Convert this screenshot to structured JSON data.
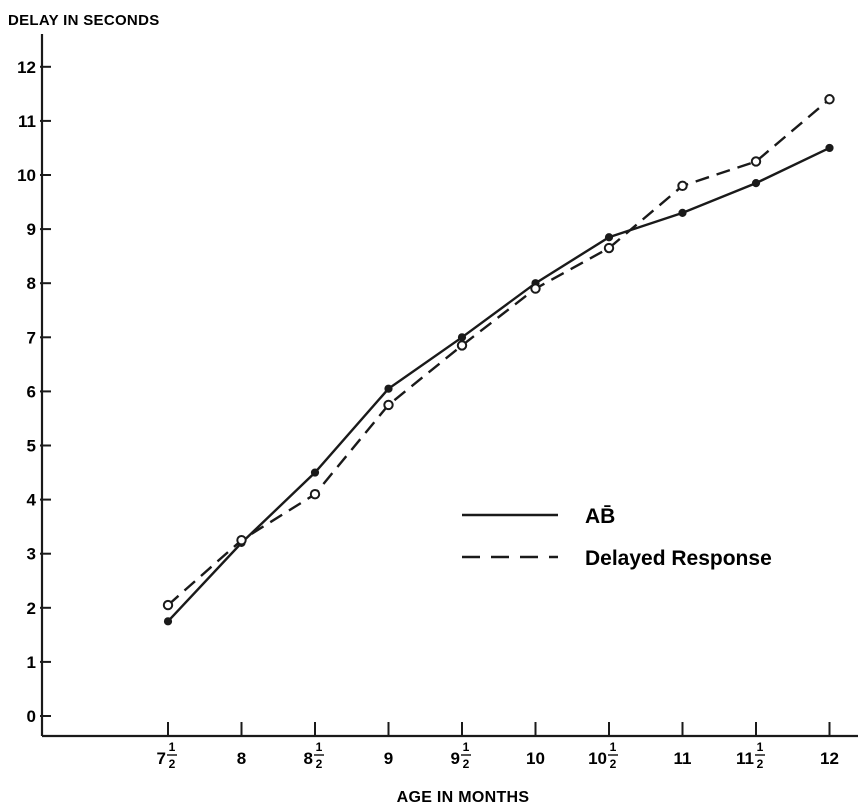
{
  "chart_data": {
    "type": "line",
    "ylabel": "DELAY IN SECONDS",
    "xlabel": "AGE IN MONTHS",
    "categories": [
      "7½",
      "8",
      "8½",
      "9",
      "9½",
      "10",
      "10½",
      "11",
      "11½",
      "12"
    ],
    "y_ticks": [
      "0",
      "1",
      "2",
      "3",
      "4",
      "5",
      "6",
      "7",
      "8",
      "9",
      "10",
      "11",
      "12"
    ],
    "ylim": [
      0,
      12.5
    ],
    "grid": false,
    "legend_position": "center-right",
    "series": [
      {
        "name": "AB̄",
        "style": "solid",
        "marker": "filled-circle",
        "values": [
          1.75,
          3.2,
          4.5,
          6.05,
          7.0,
          8.0,
          8.85,
          9.3,
          9.85,
          10.5
        ]
      },
      {
        "name": "Delayed Response",
        "style": "dashed",
        "marker": "open-circle",
        "values": [
          2.05,
          3.25,
          4.1,
          5.75,
          6.85,
          7.9,
          8.65,
          9.8,
          10.25,
          11.4
        ]
      }
    ],
    "colors": {
      "ink": "#1a1a1a",
      "background": "#ffffff"
    }
  }
}
